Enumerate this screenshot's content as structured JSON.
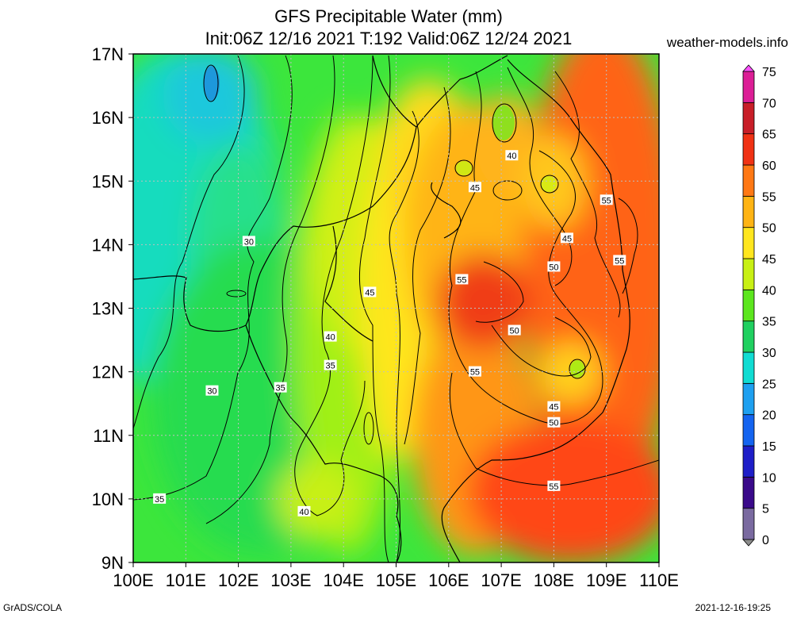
{
  "title": {
    "line1": "GFS Precipitable Water (mm)",
    "line2": "Init:06Z 12/16 2021 T:192 Valid:06Z 12/24 2021"
  },
  "site": "weather-models.info",
  "footer": {
    "left": "GrADS/COLA",
    "right": "2021-12-16-19:25"
  },
  "map": {
    "lon_range": [
      100,
      110
    ],
    "lat_range": [
      9,
      17
    ],
    "x_ticks": [
      "100E",
      "101E",
      "102E",
      "103E",
      "104E",
      "105E",
      "106E",
      "107E",
      "108E",
      "109E",
      "110E"
    ],
    "y_ticks": [
      "9N",
      "10N",
      "11N",
      "12N",
      "13N",
      "14N",
      "15N",
      "16N",
      "17N"
    ],
    "grid": true
  },
  "colorbar": {
    "labels": [
      "0",
      "5",
      "10",
      "15",
      "20",
      "25",
      "30",
      "35",
      "40",
      "45",
      "50",
      "55",
      "60",
      "65",
      "70",
      "75"
    ],
    "colors": [
      "#8c8c8c",
      "#7a6aa0",
      "#3a0a8a",
      "#1e1ec8",
      "#1464f0",
      "#1ea0f0",
      "#10dcd2",
      "#20d060",
      "#5ce61e",
      "#c8f014",
      "#ffe61e",
      "#ffb414",
      "#ff7814",
      "#f03214",
      "#c81e28",
      "#dc1e96",
      "#ff50ff"
    ]
  },
  "contour_labels": [
    {
      "text": "30",
      "lon": 102.2,
      "lat": 14.05
    },
    {
      "text": "30",
      "lon": 101.5,
      "lat": 11.7
    },
    {
      "text": "35",
      "lon": 102.8,
      "lat": 11.75
    },
    {
      "text": "35",
      "lon": 100.5,
      "lat": 10.0
    },
    {
      "text": "35",
      "lon": 103.75,
      "lat": 12.1
    },
    {
      "text": "40",
      "lon": 103.75,
      "lat": 12.55
    },
    {
      "text": "40",
      "lon": 103.25,
      "lat": 9.8
    },
    {
      "text": "40",
      "lon": 107.2,
      "lat": 15.4
    },
    {
      "text": "45",
      "lon": 104.5,
      "lat": 13.25
    },
    {
      "text": "45",
      "lon": 106.5,
      "lat": 14.9
    },
    {
      "text": "45",
      "lon": 108.25,
      "lat": 14.1
    },
    {
      "text": "45",
      "lon": 108.0,
      "lat": 11.45
    },
    {
      "text": "50",
      "lon": 108.0,
      "lat": 13.65
    },
    {
      "text": "50",
      "lon": 107.25,
      "lat": 12.65
    },
    {
      "text": "50",
      "lon": 108.0,
      "lat": 11.2
    },
    {
      "text": "55",
      "lon": 106.25,
      "lat": 13.45
    },
    {
      "text": "55",
      "lon": 106.5,
      "lat": 12.0
    },
    {
      "text": "55",
      "lon": 109.0,
      "lat": 14.7
    },
    {
      "text": "55",
      "lon": 109.25,
      "lat": 13.75
    },
    {
      "text": "55",
      "lon": 108.0,
      "lat": 10.2
    }
  ]
}
